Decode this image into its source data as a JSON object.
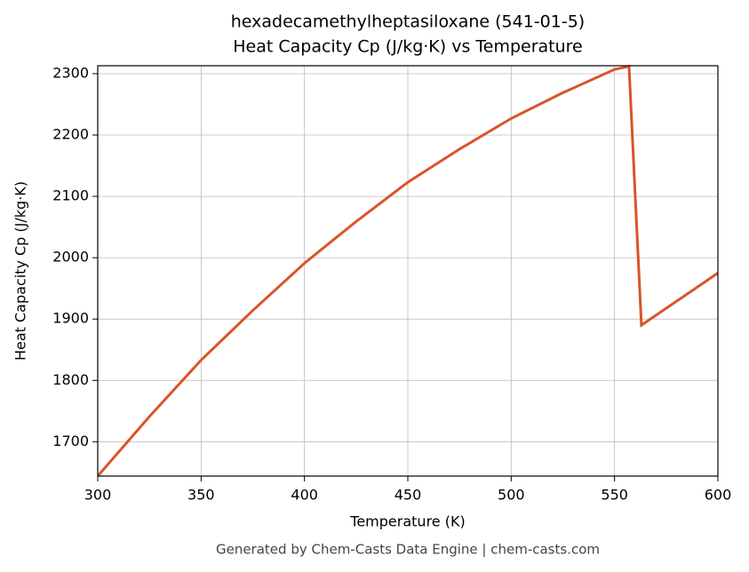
{
  "chart_data": {
    "type": "line",
    "title": "hexadecamethylheptasiloxane (541-01-5)",
    "subtitle": "Heat Capacity Cp (J/kg·K) vs Temperature",
    "x_label": "Temperature (K)",
    "y_label": "Heat Capacity Cp (J/kg·K)",
    "footnote": "Generated by Chem-Casts Data Engine | chem-casts.com",
    "x": [
      300,
      325,
      350,
      375,
      400,
      425,
      450,
      475,
      500,
      525,
      550,
      557,
      563,
      600
    ],
    "series": [
      {
        "name": "Heat Capacity Cp",
        "color": "#d9542a",
        "values": [
          1644,
          1741,
          1833,
          1914,
          1991,
          2059,
          2123,
          2177,
          2227,
          2269,
          2307,
          2312,
          1890,
          1975
        ]
      }
    ],
    "xlim": [
      300,
      600
    ],
    "xticks": [
      300,
      350,
      400,
      450,
      500,
      550,
      600
    ],
    "ylim": [
      1644,
      2313
    ],
    "yticks": [
      1700,
      1800,
      1900,
      2000,
      2100,
      2200,
      2300
    ],
    "grid": true
  }
}
